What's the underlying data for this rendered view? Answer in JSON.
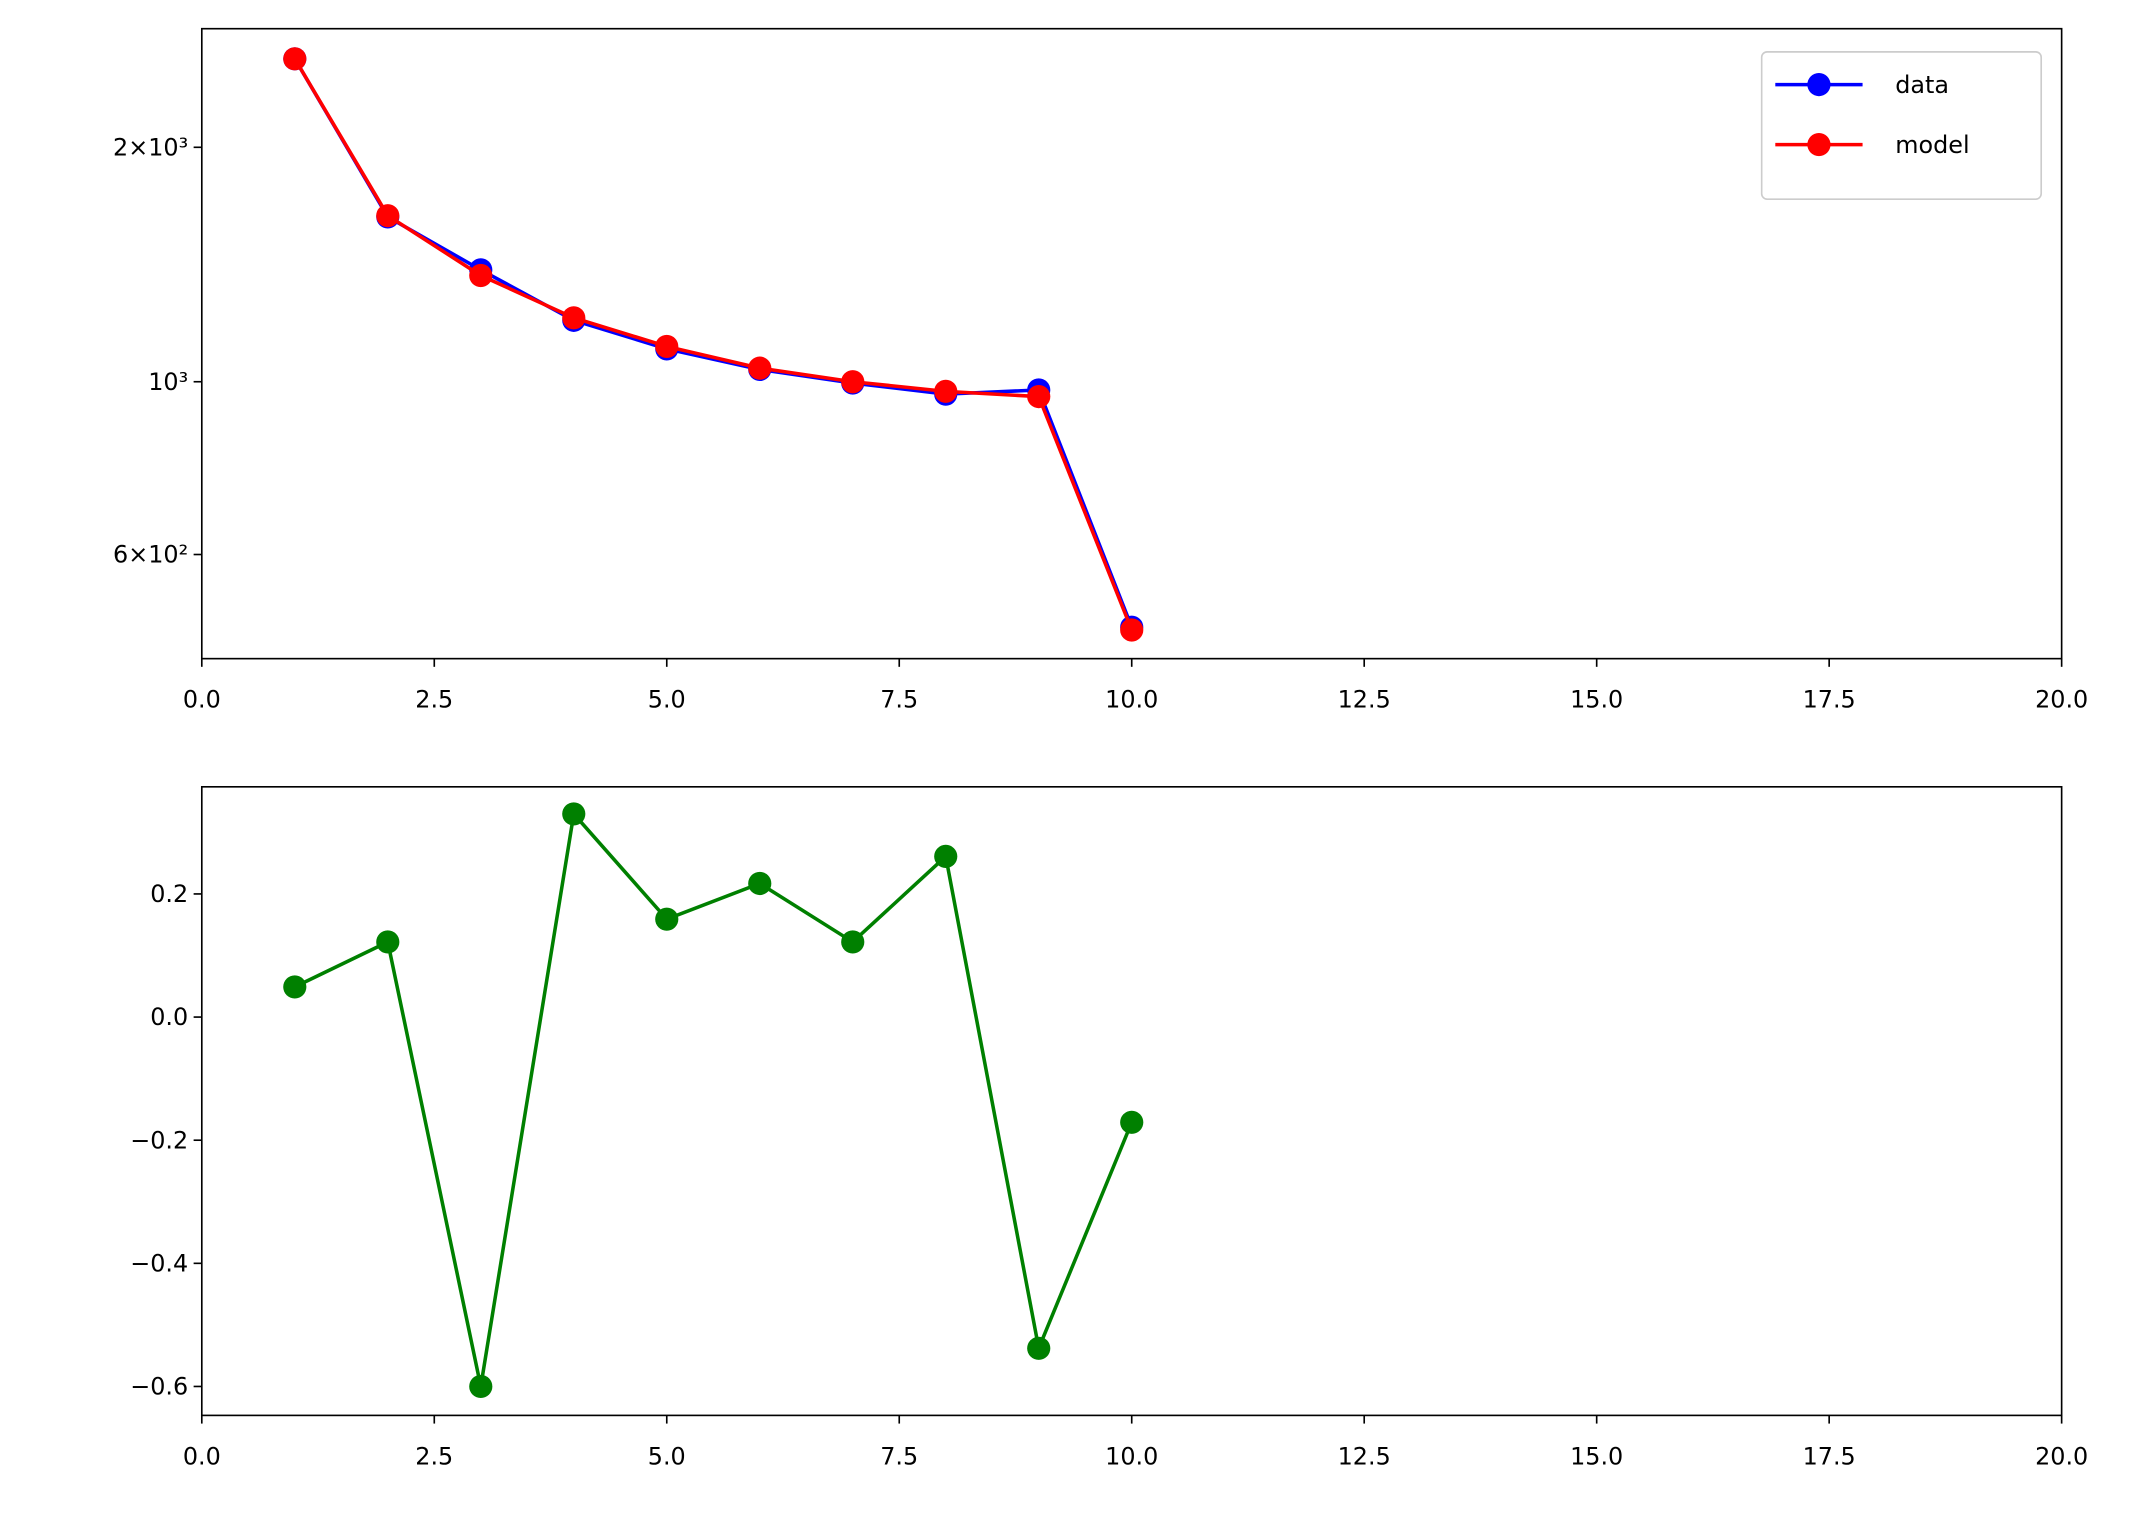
{
  "chart_data": [
    {
      "type": "line",
      "log_y": true,
      "x": [
        1,
        2,
        3,
        4,
        5,
        6,
        7,
        8,
        9,
        10
      ],
      "series": [
        {
          "name": "data",
          "color": "#0000ff",
          "values": [
            2598,
            1628,
            1392,
            1199,
            1102,
            1037,
            996,
            964,
            976,
            484
          ]
        },
        {
          "name": "model",
          "color": "#ff0000",
          "values": [
            2598,
            1634,
            1369,
            1208,
            1110,
            1041,
            1000,
            972,
            957,
            480
          ]
        }
      ],
      "xlim": [
        0,
        20
      ],
      "xticks": [
        {
          "value": 0,
          "label": "0.0"
        },
        2.5,
        {
          "value": 5,
          "label": "5.0"
        },
        7.5,
        {
          "value": 10,
          "label": "10.0"
        },
        12.5,
        {
          "value": 15,
          "label": "15.0"
        },
        17.5,
        {
          "value": 20,
          "label": "20.0"
        }
      ],
      "ylim": [
        441,
        2840
      ],
      "yticks": [
        {
          "value": 600,
          "label": "6×10²"
        },
        {
          "value": 1000,
          "label": "10³"
        },
        {
          "value": 2000,
          "label": "2×10³"
        }
      ],
      "legend": "upper right"
    },
    {
      "type": "line",
      "log_y": false,
      "x": [
        1,
        2,
        3,
        4,
        5,
        6,
        7,
        8,
        9,
        10
      ],
      "series": [
        {
          "color": "#008000",
          "values": [
            0.049,
            0.122,
            -0.6,
            0.33,
            0.159,
            0.217,
            0.122,
            0.261,
            -0.538,
            -0.171
          ]
        }
      ],
      "xlim": [
        0,
        20
      ],
      "xticks": [
        {
          "value": 0,
          "label": "0.0"
        },
        2.5,
        {
          "value": 5,
          "label": "5.0"
        },
        7.5,
        {
          "value": 10,
          "label": "10.0"
        },
        12.5,
        {
          "value": 15,
          "label": "15.0"
        },
        17.5,
        {
          "value": 20,
          "label": "20.0"
        }
      ],
      "ylim": [
        -0.647,
        0.374
      ],
      "yticks": [
        {
          "value": -0.6,
          "label": "−0.6"
        },
        {
          "value": -0.4,
          "label": "−0.4"
        },
        {
          "value": -0.2,
          "label": "−0.2"
        },
        {
          "value": 0,
          "label": "0.0"
        },
        {
          "value": 0.2,
          "label": "0.2"
        }
      ]
    }
  ]
}
